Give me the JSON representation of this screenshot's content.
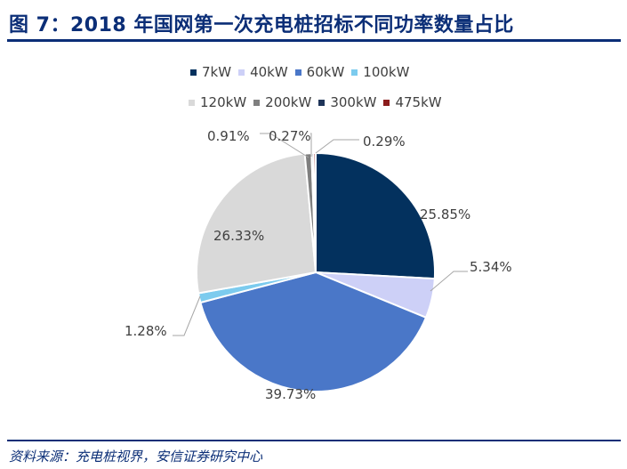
{
  "header": {
    "title": "图 7：2018 年国网第一次充电桩招标不同功率数量占比"
  },
  "chart_data": {
    "type": "pie",
    "title": "2018 年国网第一次充电桩招标不同功率数量占比",
    "slices": [
      {
        "label": "7kW",
        "value": 25.85,
        "value_label": "25.85%",
        "color": "#03315e"
      },
      {
        "label": "40kW",
        "value": 5.34,
        "value_label": "5.34%",
        "color": "#cdd0f7"
      },
      {
        "label": "60kW",
        "value": 39.73,
        "value_label": "39.73%",
        "color": "#4a77c8"
      },
      {
        "label": "100kW",
        "value": 1.28,
        "value_label": "1.28%",
        "color": "#7ccbee"
      },
      {
        "label": "120kW",
        "value": 26.33,
        "value_label": "26.33%",
        "color": "#d9d9d9"
      },
      {
        "label": "200kW",
        "value": 0.91,
        "value_label": "0.91%",
        "color": "#7f7f7f"
      },
      {
        "label": "300kW",
        "value": 0.27,
        "value_label": "0.27%",
        "color": "#1f3559"
      },
      {
        "label": "475kW",
        "value": 0.29,
        "value_label": "0.29%",
        "color": "#8b1c1c"
      }
    ],
    "legend_position": "top"
  },
  "footer": {
    "source": "资料来源：充电桩视界，安信证券研究中心"
  }
}
